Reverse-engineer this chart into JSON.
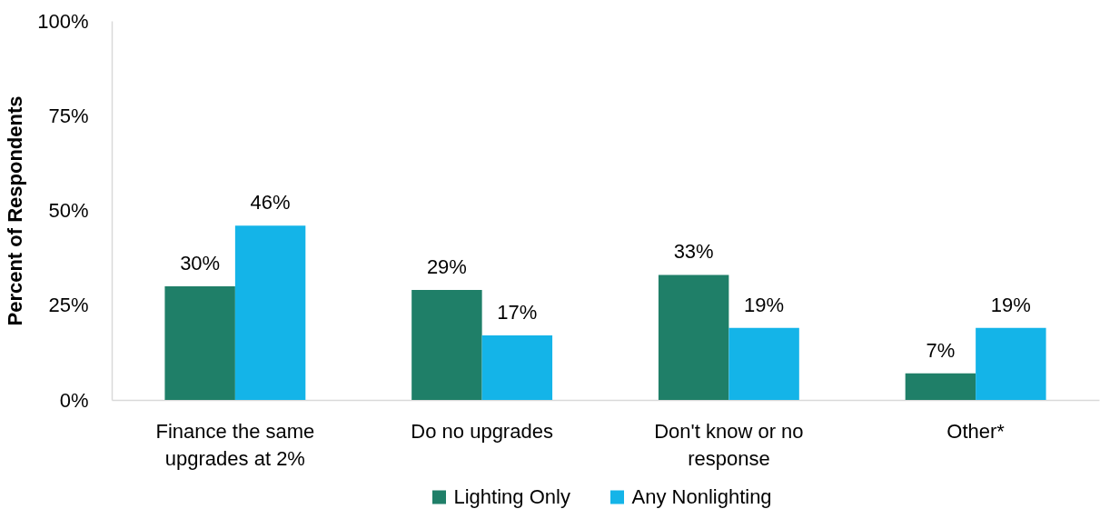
{
  "chart_data": {
    "type": "bar",
    "ylabel": "Percent of Respondents",
    "categories": [
      "Finance the same upgrades at 2%",
      "Do no upgrades",
      "Don't know or no response",
      "Other*"
    ],
    "series": [
      {
        "name": "Lighting Only",
        "color": "#1f7f68",
        "values": [
          30,
          29,
          33,
          7
        ],
        "value_labels": [
          "30%",
          "29%",
          "33%",
          "7%"
        ]
      },
      {
        "name": "Any Nonlighting",
        "color": "#14b4e8",
        "values": [
          46,
          17,
          19,
          19
        ],
        "value_labels": [
          "46%",
          "17%",
          "19%",
          "19%"
        ]
      }
    ],
    "ylim": [
      0,
      100
    ],
    "yticks": [
      {
        "value": 0,
        "label": "0%"
      },
      {
        "value": 25,
        "label": "25%"
      },
      {
        "value": 50,
        "label": "50%"
      },
      {
        "value": 75,
        "label": "75%"
      },
      {
        "value": 100,
        "label": "100%"
      }
    ],
    "grid": false,
    "legend": "bottom"
  }
}
